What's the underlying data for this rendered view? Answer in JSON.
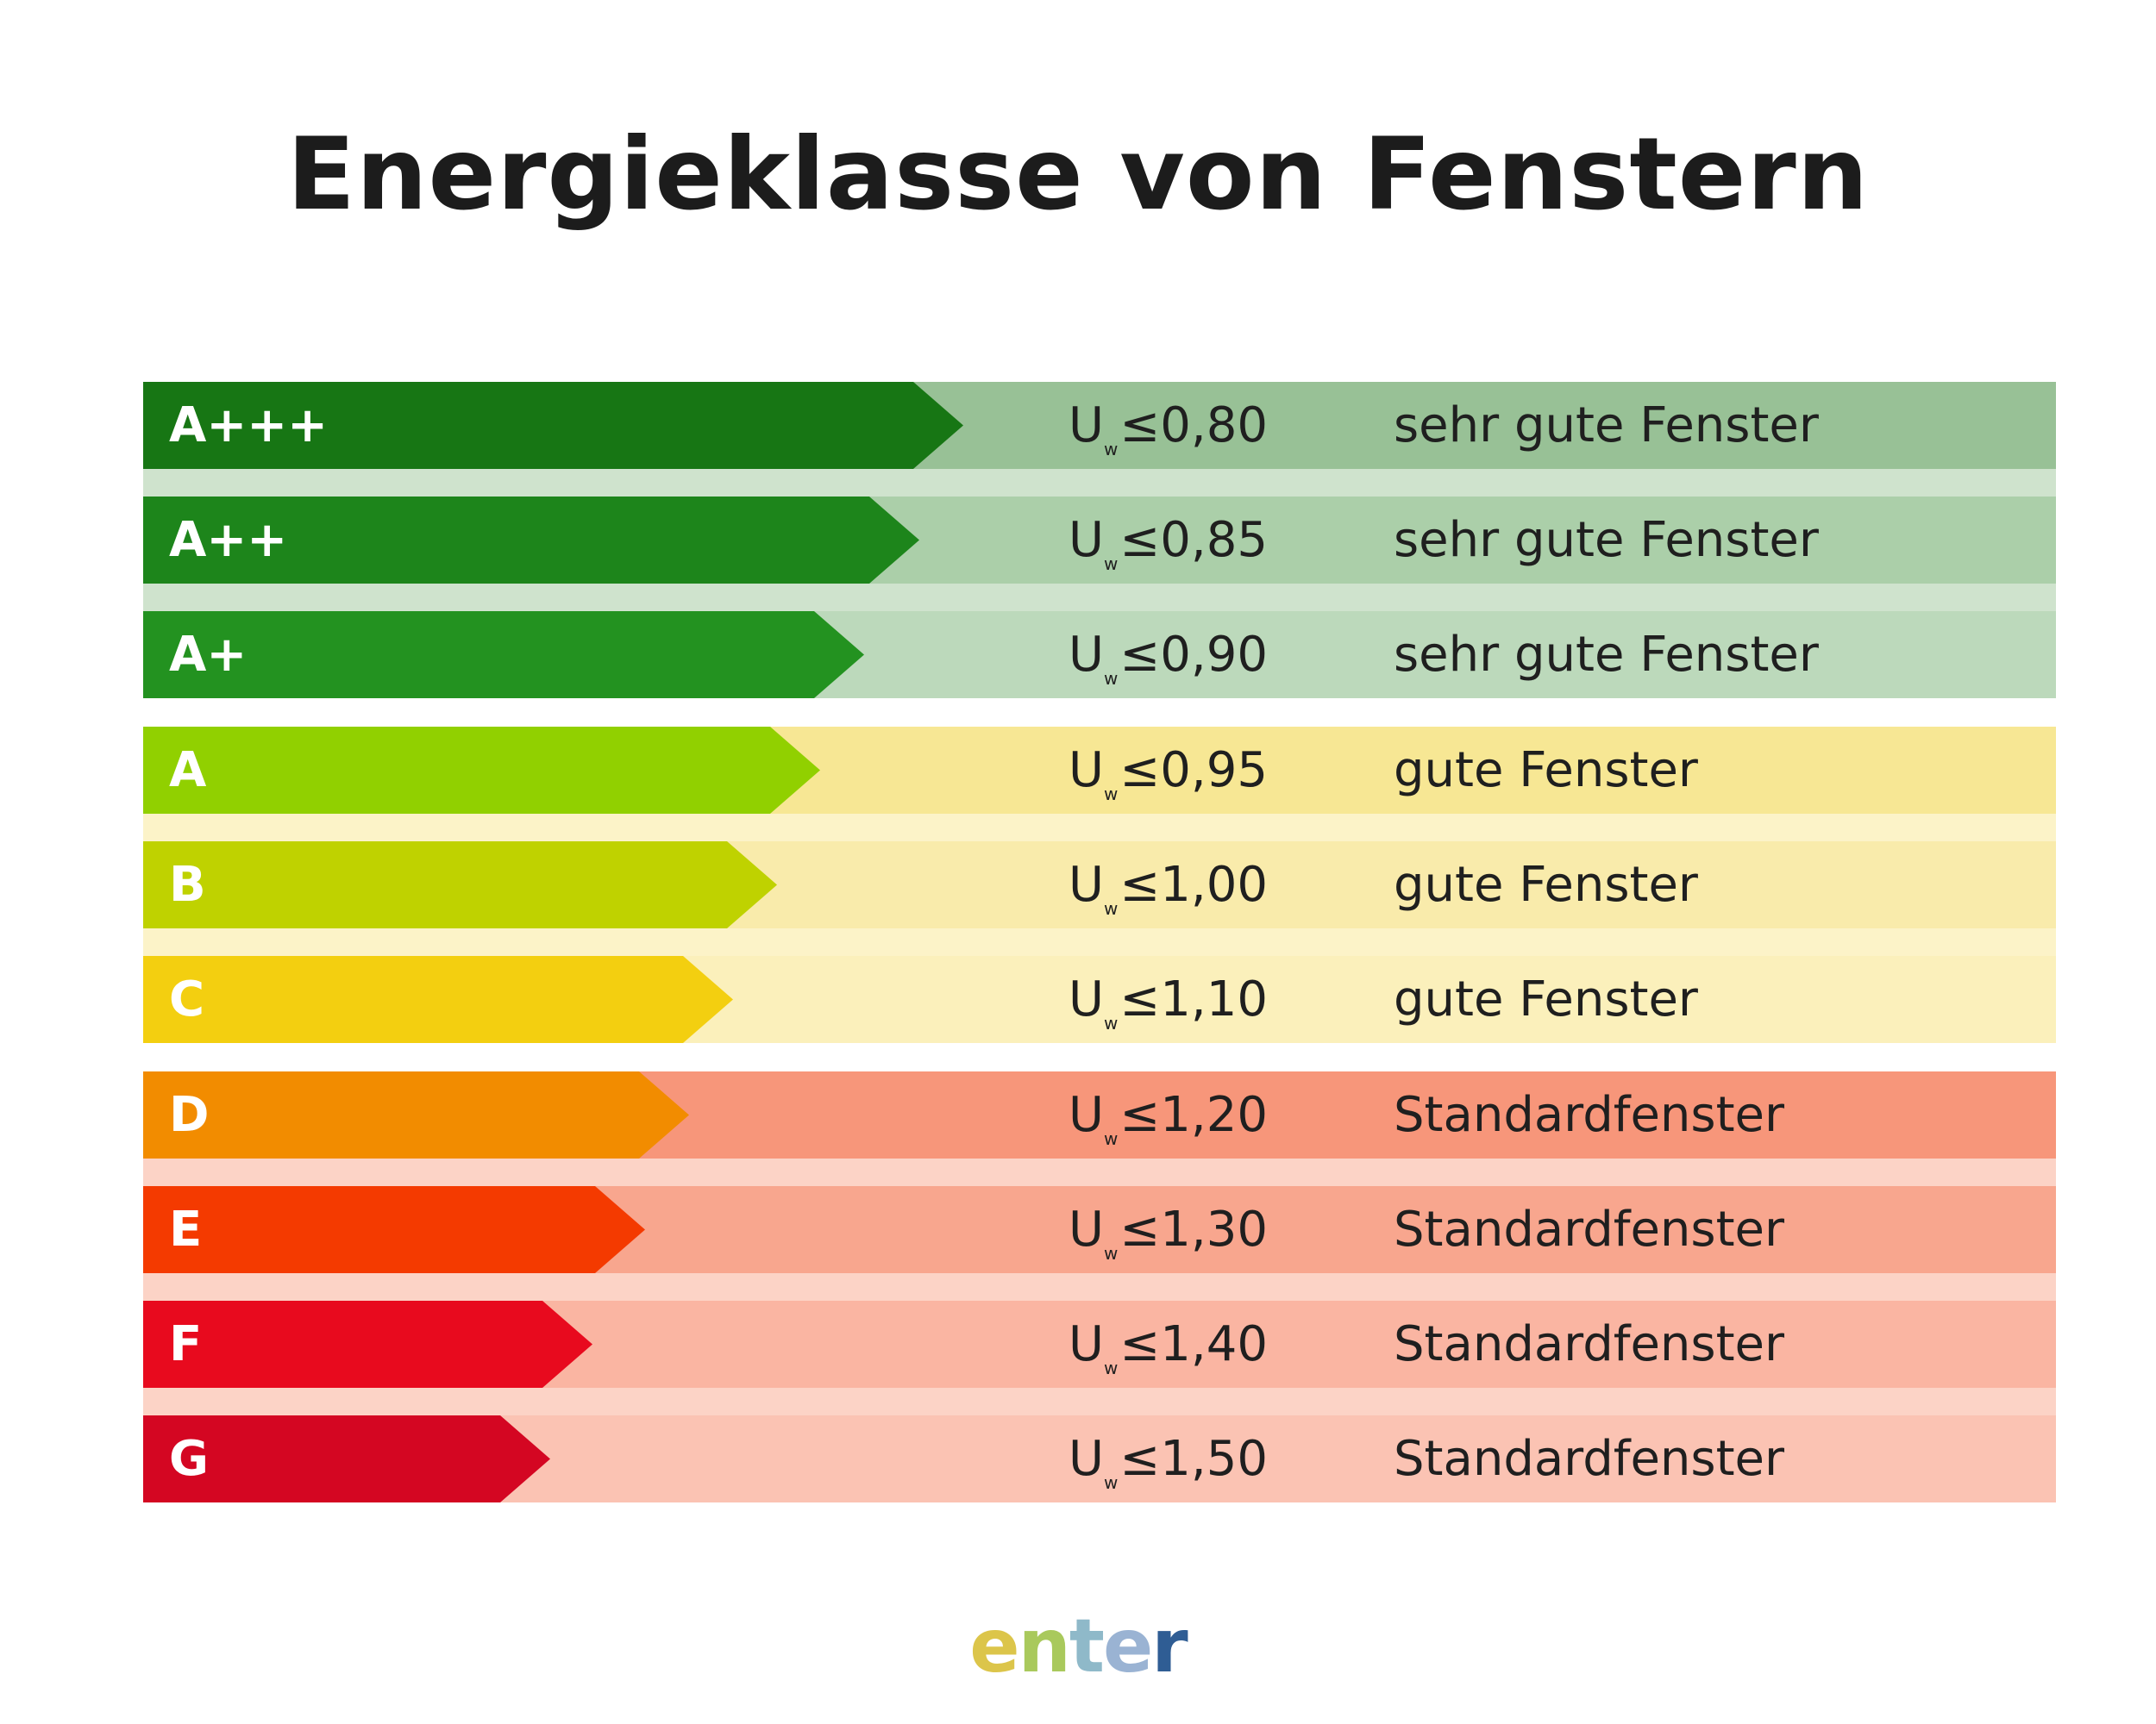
{
  "title": "Energieklasse von Fenstern",
  "u_symbol": "U",
  "u_subscript": "w",
  "rows": [
    {
      "class": "A+++",
      "value": "≤0,80",
      "label": "sehr gute Fenster",
      "arrow_color": "#177614",
      "bg_color": "#98c196"
    },
    {
      "class": "A++",
      "value": "≤0,85",
      "label": "sehr gute Fenster",
      "arrow_color": "#1d851b",
      "bg_color": "#abcfa9"
    },
    {
      "class": "A+",
      "value": "≤0,90",
      "label": "sehr gute Fenster",
      "arrow_color": "#239220",
      "bg_color": "#bcd9bb"
    },
    {
      "class": "A",
      "value": "≤0,95",
      "label": "gute Fenster",
      "arrow_color": "#91d000",
      "bg_color": "#f7e794"
    },
    {
      "class": "B",
      "value": "≤1,00",
      "label": "gute Fenster",
      "arrow_color": "#bfd200",
      "bg_color": "#f9ebab"
    },
    {
      "class": "C",
      "value": "≤1,10",
      "label": "gute Fenster",
      "arrow_color": "#f3cf10",
      "bg_color": "#fbf0bb"
    },
    {
      "class": "D",
      "value": "≤1,20",
      "label": "Standardfenster",
      "arrow_color": "#f28c00",
      "bg_color": "#f7967a"
    },
    {
      "class": "E",
      "value": "≤1,30",
      "label": "Standardfenster",
      "arrow_color": "#f43a00",
      "bg_color": "#f8a68e"
    },
    {
      "class": "F",
      "value": "≤1,40",
      "label": "Standardfenster",
      "arrow_color": "#e80a1e",
      "bg_color": "#fab5a2"
    },
    {
      "class": "G",
      "value": "≤1,50",
      "label": "Standardfenster",
      "arrow_color": "#d40622",
      "bg_color": "#fbc3b3"
    }
  ],
  "logo": {
    "letters": [
      {
        "char": "e",
        "color": "#dcc54a"
      },
      {
        "char": "n",
        "color": "#a9c95c"
      },
      {
        "char": "t",
        "color": "#8fb9c9"
      },
      {
        "char": "e",
        "color": "#9ab3d3"
      },
      {
        "char": "r",
        "color": "#2f5d94"
      }
    ]
  }
}
